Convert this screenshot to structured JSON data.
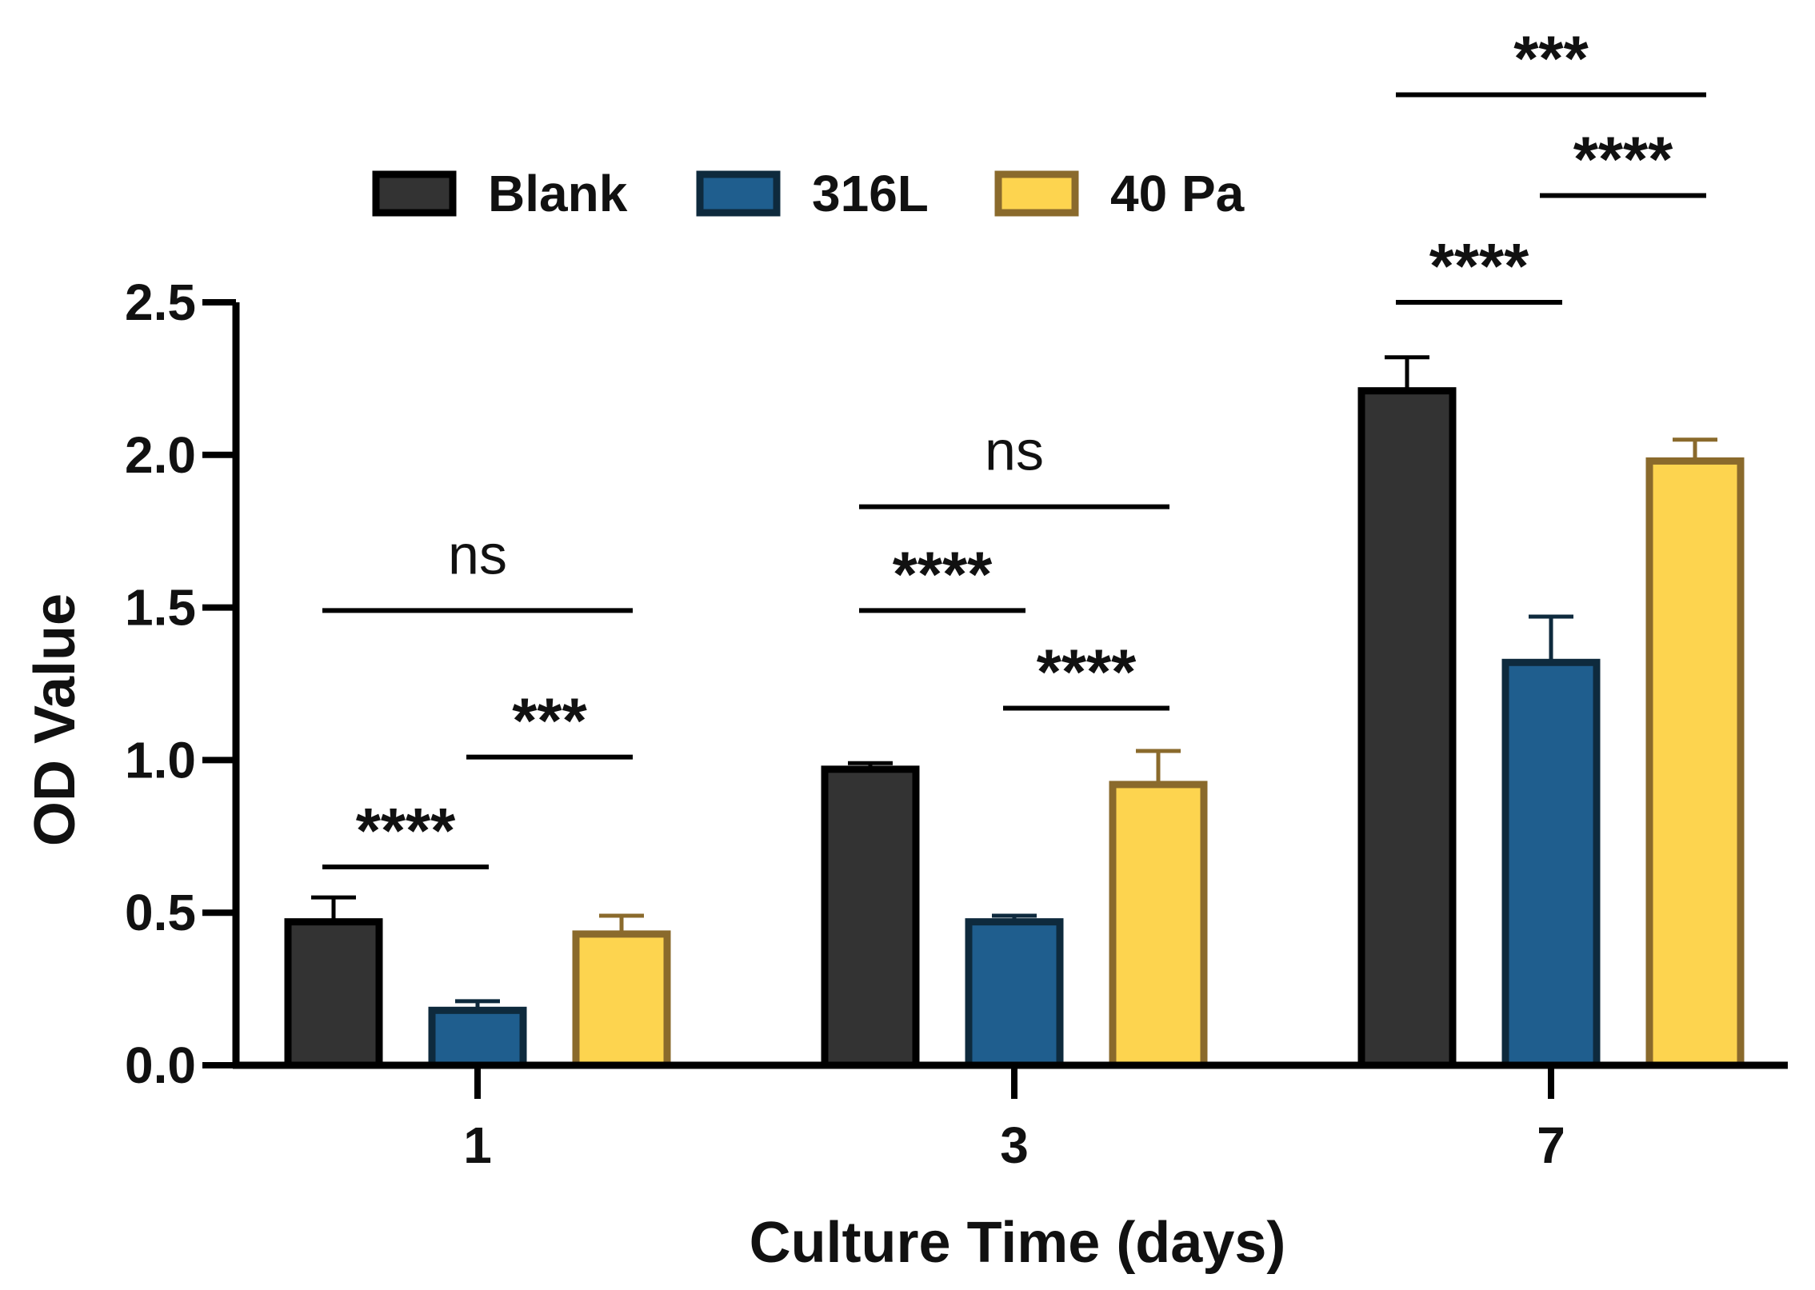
{
  "chart_data": {
    "type": "bar",
    "title": "",
    "xlabel": "Culture Time (days)",
    "ylabel": "OD Value",
    "categories": [
      "1",
      "3",
      "7"
    ],
    "ylim": [
      0,
      2.5
    ],
    "yticks": [
      "0.0",
      "0.5",
      "1.0",
      "1.5",
      "2.0",
      "2.5"
    ],
    "legend_position": "top",
    "series": [
      {
        "name": "Blank",
        "values": [
          0.47,
          0.97,
          2.21
        ],
        "errors": [
          0.08,
          0.02,
          0.11
        ],
        "fill": "#333333",
        "stroke": "#000000"
      },
      {
        "name": "316L",
        "values": [
          0.18,
          0.47,
          1.32
        ],
        "errors": [
          0.03,
          0.02,
          0.15
        ],
        "fill": "#1f5e8e",
        "stroke": "#0e2a3d"
      },
      {
        "name": "40 Pa",
        "values": [
          0.43,
          0.92,
          1.98
        ],
        "errors": [
          0.06,
          0.11,
          0.07
        ],
        "fill": "#fdd44f",
        "stroke": "#8a6a2c"
      }
    ],
    "significance": [
      {
        "category": 0,
        "from": 0,
        "to": 1,
        "label": "****",
        "y": 0.65
      },
      {
        "category": 0,
        "from": 1,
        "to": 2,
        "label": "***",
        "y": 1.01
      },
      {
        "category": 0,
        "from": 0,
        "to": 2,
        "label": "ns",
        "y": 1.49
      },
      {
        "category": 1,
        "from": 0,
        "to": 1,
        "label": "****",
        "y": 1.49
      },
      {
        "category": 1,
        "from": 1,
        "to": 2,
        "label": "****",
        "y": 1.17
      },
      {
        "category": 1,
        "from": 0,
        "to": 2,
        "label": "ns",
        "y": 1.83
      },
      {
        "category": 2,
        "from": 0,
        "to": 1,
        "label": "****",
        "y": 2.5
      },
      {
        "category": 2,
        "from": 1,
        "to": 2,
        "label": "****",
        "y": 2.85
      },
      {
        "category": 2,
        "from": 0,
        "to": 2,
        "label": "***",
        "y": 3.18
      }
    ]
  }
}
